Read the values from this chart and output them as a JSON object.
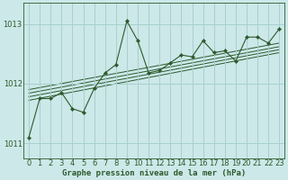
{
  "title": "Graphe pression niveau de la mer (hPa)",
  "bg_color": "#cce8e8",
  "grid_color": "#a8d0d0",
  "line_color": "#2d5a2d",
  "xlim": [
    -0.5,
    23.5
  ],
  "ylim": [
    1010.75,
    1013.35
  ],
  "yticks": [
    1011,
    1012,
    1013
  ],
  "xticks": [
    0,
    1,
    2,
    3,
    4,
    5,
    6,
    7,
    8,
    9,
    10,
    11,
    12,
    13,
    14,
    15,
    16,
    17,
    18,
    19,
    20,
    21,
    22,
    23
  ],
  "main_x": [
    0,
    1,
    2,
    3,
    4,
    5,
    6,
    7,
    8,
    9,
    10,
    11,
    12,
    13,
    14,
    15,
    16,
    17,
    18,
    19,
    20,
    21,
    22,
    23
  ],
  "main_y": [
    1011.1,
    1011.75,
    1011.75,
    1011.85,
    1011.58,
    1011.52,
    1011.92,
    1012.18,
    1012.32,
    1013.05,
    1012.72,
    1012.18,
    1012.22,
    1012.35,
    1012.48,
    1012.45,
    1012.72,
    1012.52,
    1012.55,
    1012.38,
    1012.78,
    1012.78,
    1012.68,
    1012.92
  ],
  "trend_lines": [
    {
      "x": [
        0,
        23
      ],
      "y": [
        1011.72,
        1012.52
      ]
    },
    {
      "x": [
        0,
        23
      ],
      "y": [
        1011.78,
        1012.57
      ]
    },
    {
      "x": [
        0,
        23
      ],
      "y": [
        1011.84,
        1012.62
      ]
    },
    {
      "x": [
        0,
        23
      ],
      "y": [
        1011.9,
        1012.68
      ]
    }
  ],
  "xlabel_fontsize": 6.5,
  "tick_fontsize": 6.0,
  "ylabel_fontsize": 6.0
}
